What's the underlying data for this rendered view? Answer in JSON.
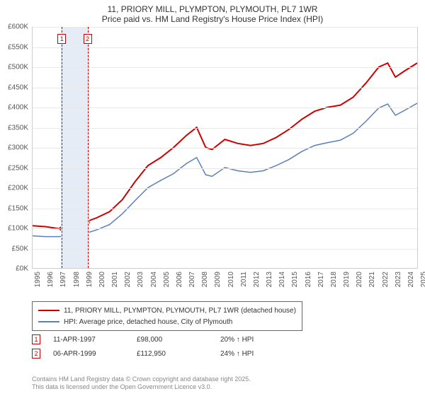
{
  "title": {
    "line1": "11, PRIORY MILL, PLYMPTON, PLYMOUTH, PL7 1WR",
    "line2": "Price paid vs. HM Land Registry's House Price Index (HPI)"
  },
  "chart": {
    "type": "line",
    "background_color": "#ffffff",
    "grid_color": "#e8e8e8",
    "border_color": "#cccccc",
    "x": {
      "min": 1995,
      "max": 2025,
      "ticks": [
        1995,
        1996,
        1997,
        1998,
        1999,
        2000,
        2001,
        2002,
        2003,
        2004,
        2005,
        2006,
        2007,
        2008,
        2009,
        2010,
        2011,
        2012,
        2013,
        2014,
        2015,
        2016,
        2017,
        2018,
        2019,
        2020,
        2021,
        2022,
        2023,
        2024,
        2025
      ]
    },
    "y": {
      "min": 0,
      "max": 600,
      "ticks": [
        0,
        50,
        100,
        150,
        200,
        250,
        300,
        350,
        400,
        450,
        500,
        550,
        600
      ],
      "tick_prefix": "£",
      "tick_suffix": "K"
    },
    "highlight_band": {
      "from": 1997.2,
      "to": 1999.4,
      "color": "#e6ecf5"
    },
    "reference_lines": [
      {
        "x": 1997.28,
        "label": "1",
        "color": "#cc0000"
      },
      {
        "x": 1999.27,
        "label": "2",
        "color": "#cc0000"
      }
    ],
    "series": [
      {
        "name": "11, PRIORY MILL, PLYMPTON, PLYMOUTH, PL7 1WR (detached house)",
        "color": "#cc0000",
        "stroke_width": 2,
        "markers": [
          {
            "x": 1997.28,
            "y": 98
          },
          {
            "x": 1999.27,
            "y": 112.95
          }
        ],
        "data": [
          [
            1995,
            105
          ],
          [
            1996,
            103
          ],
          [
            1997,
            98
          ],
          [
            1998,
            100
          ],
          [
            1999,
            113
          ],
          [
            2000,
            125
          ],
          [
            2001,
            140
          ],
          [
            2002,
            170
          ],
          [
            2003,
            215
          ],
          [
            2004,
            255
          ],
          [
            2005,
            275
          ],
          [
            2006,
            300
          ],
          [
            2007,
            330
          ],
          [
            2007.8,
            350
          ],
          [
            2008.5,
            300
          ],
          [
            2009,
            295
          ],
          [
            2010,
            320
          ],
          [
            2011,
            310
          ],
          [
            2012,
            305
          ],
          [
            2013,
            310
          ],
          [
            2014,
            325
          ],
          [
            2015,
            345
          ],
          [
            2016,
            370
          ],
          [
            2017,
            390
          ],
          [
            2018,
            400
          ],
          [
            2019,
            405
          ],
          [
            2020,
            425
          ],
          [
            2021,
            460
          ],
          [
            2022,
            500
          ],
          [
            2022.7,
            510
          ],
          [
            2023.3,
            475
          ],
          [
            2024,
            490
          ],
          [
            2025,
            510
          ]
        ]
      },
      {
        "name": "HPI: Average price, detached house, City of Plymouth",
        "color": "#5b7fb8",
        "stroke_width": 1.5,
        "markers": [],
        "data": [
          [
            1995,
            80
          ],
          [
            1996,
            78
          ],
          [
            1997,
            78
          ],
          [
            1998,
            80
          ],
          [
            1999,
            85
          ],
          [
            2000,
            95
          ],
          [
            2001,
            108
          ],
          [
            2002,
            135
          ],
          [
            2003,
            168
          ],
          [
            2004,
            200
          ],
          [
            2005,
            218
          ],
          [
            2006,
            235
          ],
          [
            2007,
            260
          ],
          [
            2007.8,
            275
          ],
          [
            2008.5,
            232
          ],
          [
            2009,
            228
          ],
          [
            2010,
            250
          ],
          [
            2011,
            242
          ],
          [
            2012,
            238
          ],
          [
            2013,
            242
          ],
          [
            2014,
            255
          ],
          [
            2015,
            270
          ],
          [
            2016,
            290
          ],
          [
            2017,
            305
          ],
          [
            2018,
            312
          ],
          [
            2019,
            318
          ],
          [
            2020,
            335
          ],
          [
            2021,
            365
          ],
          [
            2022,
            398
          ],
          [
            2022.7,
            408
          ],
          [
            2023.3,
            380
          ],
          [
            2024,
            392
          ],
          [
            2025,
            410
          ]
        ]
      }
    ]
  },
  "legend": {
    "items": [
      {
        "color": "#cc0000",
        "width": 2,
        "label": "11, PRIORY MILL, PLYMPTON, PLYMOUTH, PL7 1WR (detached house)"
      },
      {
        "color": "#5b7fb8",
        "width": 1.5,
        "label": "HPI: Average price, detached house, City of Plymouth"
      }
    ]
  },
  "points_table": {
    "rows": [
      {
        "badge": "1",
        "badge_color": "#cc0000",
        "date": "11-APR-1997",
        "price": "£98,000",
        "pct": "20% ↑ HPI"
      },
      {
        "badge": "2",
        "badge_color": "#cc0000",
        "date": "06-APR-1999",
        "price": "£112,950",
        "pct": "24% ↑ HPI"
      }
    ]
  },
  "footnote": {
    "line1": "Contains HM Land Registry data © Crown copyright and database right 2025.",
    "line2": "This data is licensed under the Open Government Licence v3.0."
  }
}
